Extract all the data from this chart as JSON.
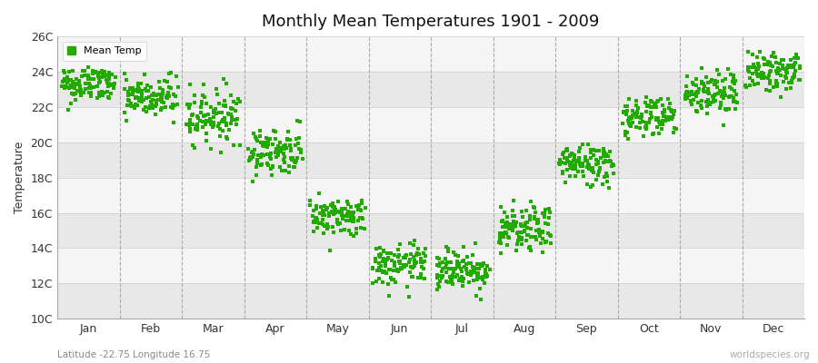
{
  "title": "Monthly Mean Temperatures 1901 - 2009",
  "ylabel": "Temperature",
  "xlabel_bottom": "Latitude -22.75 Longitude 16.75",
  "watermark": "worldspecies.org",
  "legend_label": "Mean Temp",
  "marker_color": "#22aa00",
  "bg_color": "#ffffff",
  "band_colors": [
    "#e8e8e8",
    "#f5f5f5"
  ],
  "months": [
    "Jan",
    "Feb",
    "Mar",
    "Apr",
    "May",
    "Jun",
    "Jul",
    "Aug",
    "Sep",
    "Oct",
    "Nov",
    "Dec"
  ],
  "month_centers": [
    0.5,
    1.5,
    2.5,
    3.5,
    4.5,
    5.5,
    6.5,
    7.5,
    8.5,
    9.5,
    10.5,
    11.5
  ],
  "vline_positions": [
    1.0,
    2.0,
    3.0,
    4.0,
    5.0,
    6.0,
    7.0,
    8.0,
    9.0,
    10.0,
    11.0
  ],
  "ylim": [
    10,
    26
  ],
  "yticks": [
    10,
    12,
    14,
    16,
    18,
    20,
    22,
    24,
    26
  ],
  "ytick_labels": [
    "10C",
    "12C",
    "14C",
    "16C",
    "18C",
    "20C",
    "22C",
    "24C",
    "26C"
  ],
  "xlim": [
    0,
    12
  ],
  "n_years": 109,
  "mean_temps": [
    23.3,
    22.5,
    21.5,
    19.5,
    15.8,
    13.0,
    12.8,
    15.0,
    18.8,
    21.5,
    22.8,
    24.0
  ],
  "std_temps": [
    0.55,
    0.65,
    0.75,
    0.65,
    0.55,
    0.6,
    0.6,
    0.65,
    0.6,
    0.6,
    0.65,
    0.55
  ],
  "seed": 42
}
